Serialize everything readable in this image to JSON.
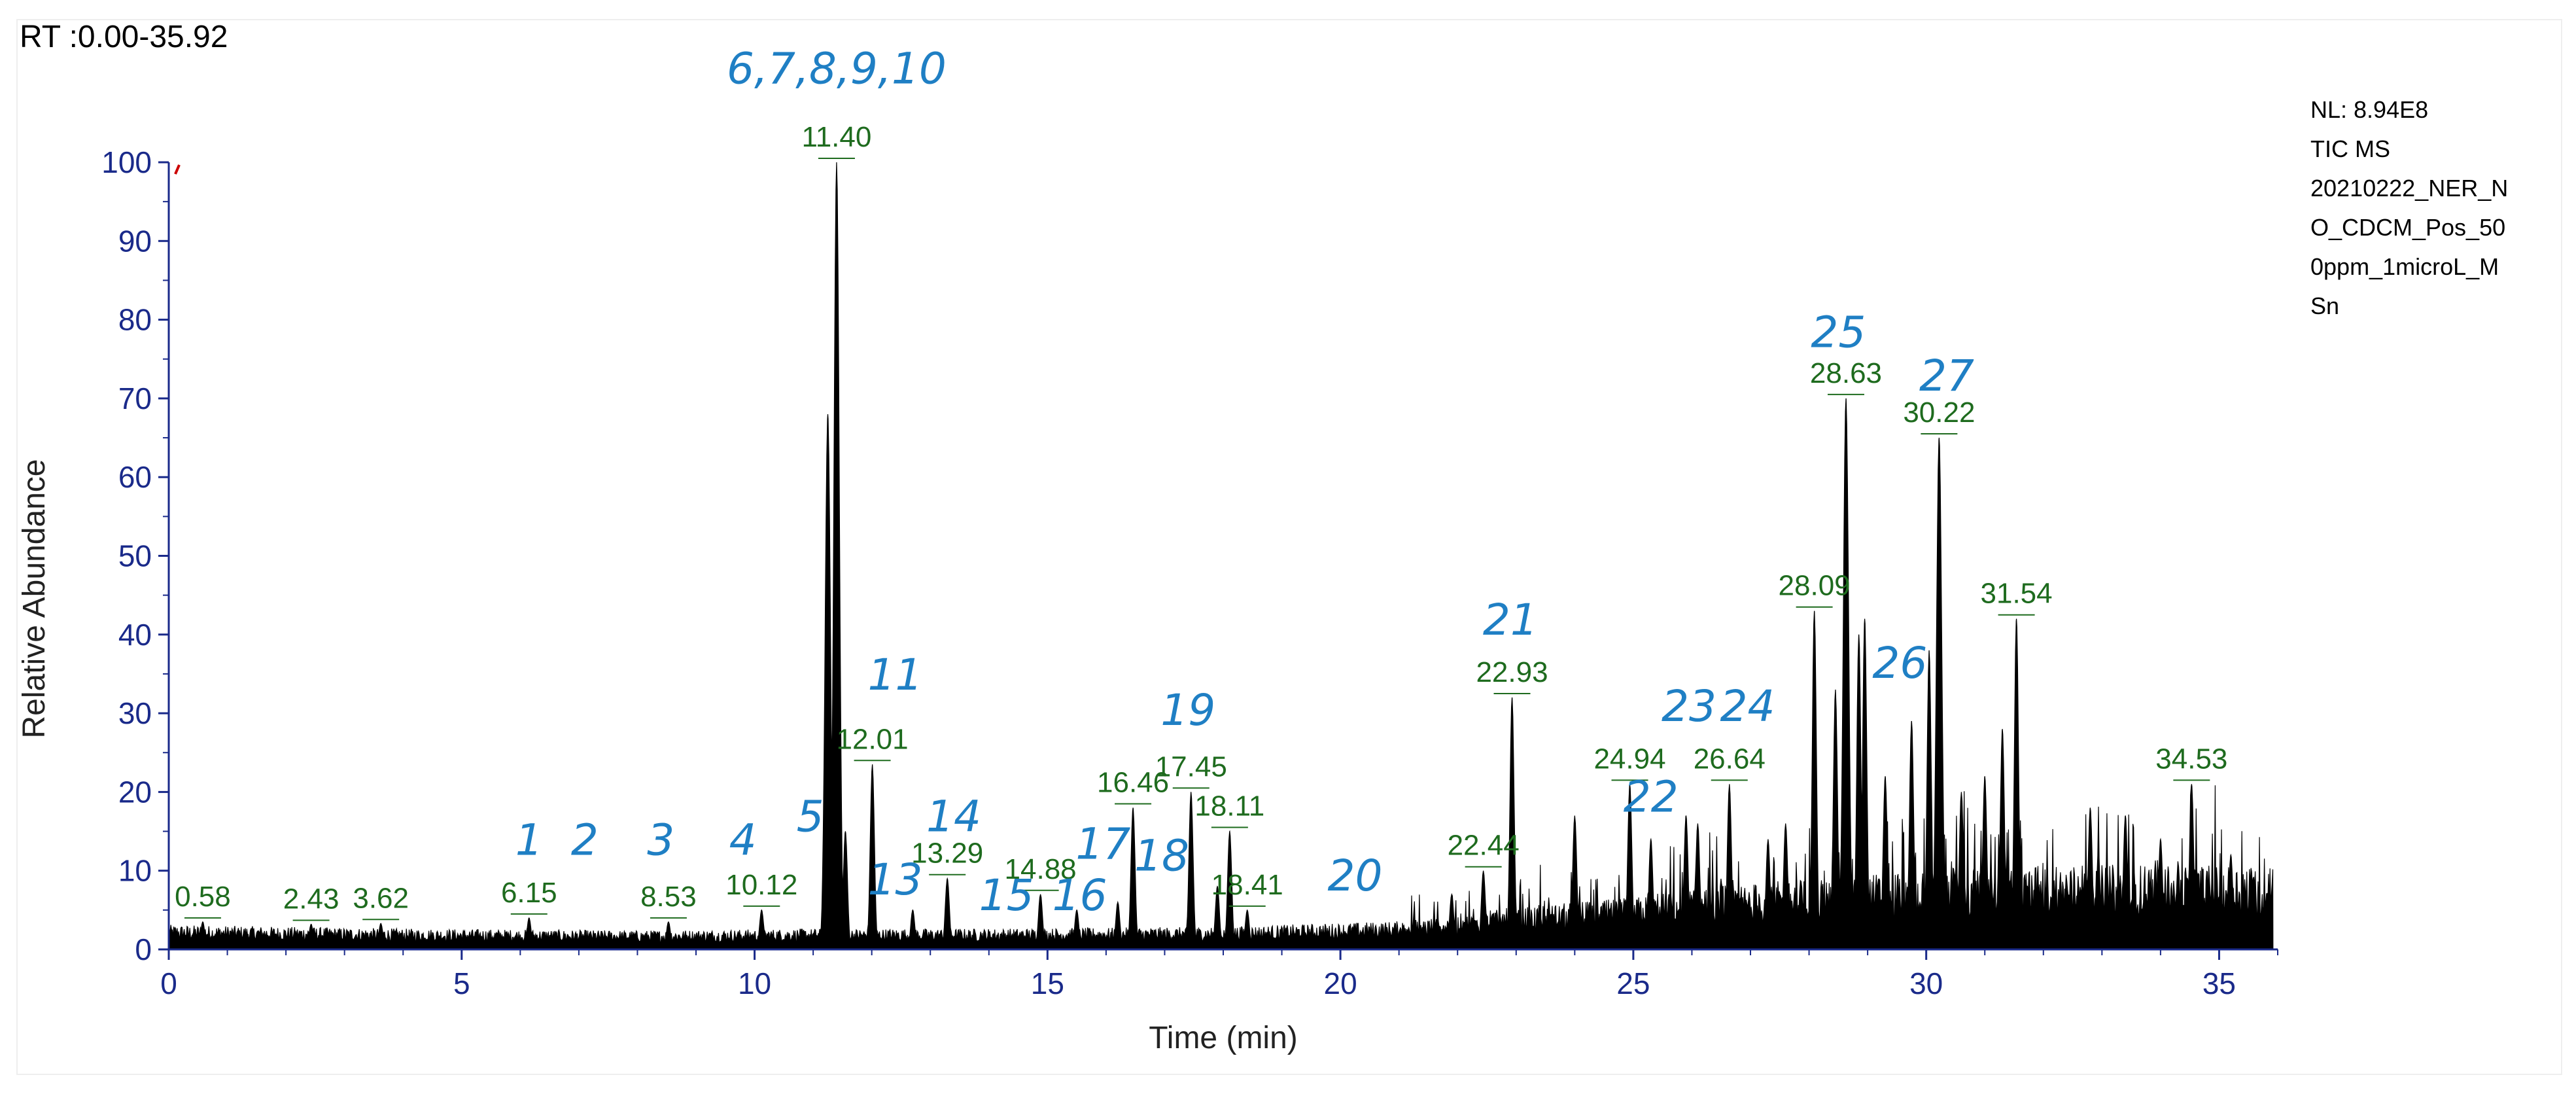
{
  "header": {
    "rt_range": "RT :0.00-35.92"
  },
  "info_box": {
    "lines": [
      "NL: 8.94E8",
      "TIC  MS",
      "20210222_NER_N",
      "O_CDCM_Pos_50",
      "0ppm_1microL_M",
      "Sn"
    ]
  },
  "colors": {
    "axis": "#1a2a8a",
    "trace": "#000000",
    "retention_label": "#1e6b1e",
    "peak_number": "#1f7fc4",
    "marker": "#cc0000"
  },
  "chart_data": {
    "type": "line",
    "title": "",
    "xlabel": "Time (min)",
    "ylabel": "Relative Abundance",
    "xlim": [
      0,
      36
    ],
    "ylim": [
      0,
      100
    ],
    "x_ticks": [
      0,
      5,
      10,
      15,
      20,
      25,
      30,
      35
    ],
    "y_ticks": [
      0,
      10,
      20,
      30,
      40,
      50,
      60,
      70,
      80,
      90,
      100
    ],
    "grid": false,
    "baseline": [
      [
        0,
        2.6
      ],
      [
        4,
        2.2
      ],
      [
        8,
        2.0
      ],
      [
        11,
        2.2
      ],
      [
        14,
        2.2
      ],
      [
        18,
        2.4
      ],
      [
        21,
        3.0
      ],
      [
        23,
        4.5
      ],
      [
        25,
        5.5
      ],
      [
        26,
        6.5
      ],
      [
        28,
        7.5
      ],
      [
        30,
        8.5
      ],
      [
        32,
        9
      ],
      [
        34,
        9
      ],
      [
        35.92,
        9
      ]
    ],
    "peaks": [
      {
        "rt": 0.58,
        "y": 3.5,
        "label": "0.58"
      },
      {
        "rt": 2.43,
        "y": 3.2,
        "label": "2.43"
      },
      {
        "rt": 3.62,
        "y": 3.3,
        "label": "3.62"
      },
      {
        "rt": 6.15,
        "y": 4,
        "label": "6.15"
      },
      {
        "rt": 8.53,
        "y": 3.5,
        "label": "8.53"
      },
      {
        "rt": 10.12,
        "y": 5,
        "label": "10.12"
      },
      {
        "rt": 11.4,
        "y": 100,
        "label": "11.40"
      },
      {
        "rt": 12.01,
        "y": 23.5,
        "label": "12.01"
      },
      {
        "rt": 13.29,
        "y": 9,
        "label": "13.29"
      },
      {
        "rt": 14.88,
        "y": 7,
        "label": "14.88"
      },
      {
        "rt": 16.46,
        "y": 18,
        "label": "16.46"
      },
      {
        "rt": 17.45,
        "y": 20,
        "label": "17.45"
      },
      {
        "rt": 18.11,
        "y": 15,
        "label": "18.11"
      },
      {
        "rt": 18.41,
        "y": 5,
        "label": "18.41"
      },
      {
        "rt": 22.44,
        "y": 10,
        "label": "22.44"
      },
      {
        "rt": 22.93,
        "y": 32,
        "label": "22.93"
      },
      {
        "rt": 24.94,
        "y": 21,
        "label": "24.94"
      },
      {
        "rt": 26.64,
        "y": 21,
        "label": "26.64"
      },
      {
        "rt": 28.09,
        "y": 43,
        "label": "28.09"
      },
      {
        "rt": 28.63,
        "y": 70,
        "label": "28.63"
      },
      {
        "rt": 30.22,
        "y": 65,
        "label": "30.22"
      },
      {
        "rt": 31.54,
        "y": 42,
        "label": "31.54"
      },
      {
        "rt": 34.53,
        "y": 21,
        "label": "34.53"
      }
    ],
    "unlabeled_peaks": [
      {
        "rt": 11.25,
        "y": 68
      },
      {
        "rt": 11.55,
        "y": 15
      },
      {
        "rt": 12.7,
        "y": 5
      },
      {
        "rt": 15.5,
        "y": 5
      },
      {
        "rt": 16.2,
        "y": 6
      },
      {
        "rt": 17.9,
        "y": 8
      },
      {
        "rt": 21.9,
        "y": 7
      },
      {
        "rt": 24.0,
        "y": 17
      },
      {
        "rt": 25.3,
        "y": 14
      },
      {
        "rt": 25.9,
        "y": 17
      },
      {
        "rt": 26.1,
        "y": 16
      },
      {
        "rt": 27.3,
        "y": 14
      },
      {
        "rt": 27.6,
        "y": 16
      },
      {
        "rt": 28.45,
        "y": 33
      },
      {
        "rt": 28.85,
        "y": 40
      },
      {
        "rt": 28.95,
        "y": 42
      },
      {
        "rt": 29.3,
        "y": 22
      },
      {
        "rt": 29.75,
        "y": 29
      },
      {
        "rt": 30.05,
        "y": 38
      },
      {
        "rt": 30.6,
        "y": 20
      },
      {
        "rt": 31.0,
        "y": 22
      },
      {
        "rt": 31.3,
        "y": 28
      },
      {
        "rt": 32.8,
        "y": 18
      },
      {
        "rt": 33.4,
        "y": 17
      },
      {
        "rt": 34.0,
        "y": 14
      },
      {
        "rt": 35.2,
        "y": 12
      }
    ],
    "peak_numbers": [
      {
        "text": "1",
        "rt": 6.15,
        "y": 12
      },
      {
        "text": "2",
        "rt": 7.1,
        "y": 12
      },
      {
        "text": "3",
        "rt": 8.4,
        "y": 12
      },
      {
        "text": "4",
        "rt": 9.8,
        "y": 12
      },
      {
        "text": "5",
        "rt": 10.95,
        "y": 15
      },
      {
        "text": "6,7,8,9,10",
        "rt": 11.4,
        "y": 110
      },
      {
        "text": "11",
        "rt": 12.4,
        "y": 33
      },
      {
        "text": "13",
        "rt": 12.4,
        "y": 7
      },
      {
        "text": "14",
        "rt": 13.4,
        "y": 15
      },
      {
        "text": "15",
        "rt": 14.3,
        "y": 5
      },
      {
        "text": "16",
        "rt": 15.55,
        "y": 5
      },
      {
        "text": "17",
        "rt": 15.95,
        "y": 11.5
      },
      {
        "text": "18",
        "rt": 16.95,
        "y": 10
      },
      {
        "text": "19",
        "rt": 17.4,
        "y": 28.5
      },
      {
        "text": "20",
        "rt": 20.25,
        "y": 7.5
      },
      {
        "text": "21",
        "rt": 22.9,
        "y": 40
      },
      {
        "text": "22",
        "rt": 25.3,
        "y": 17.5
      },
      {
        "text": "23",
        "rt": 25.95,
        "y": 29
      },
      {
        "text": "24",
        "rt": 26.95,
        "y": 29
      },
      {
        "text": "25",
        "rt": 28.5,
        "y": 76.5
      },
      {
        "text": "26",
        "rt": 29.55,
        "y": 34.5
      },
      {
        "text": "27",
        "rt": 30.35,
        "y": 71
      }
    ]
  }
}
